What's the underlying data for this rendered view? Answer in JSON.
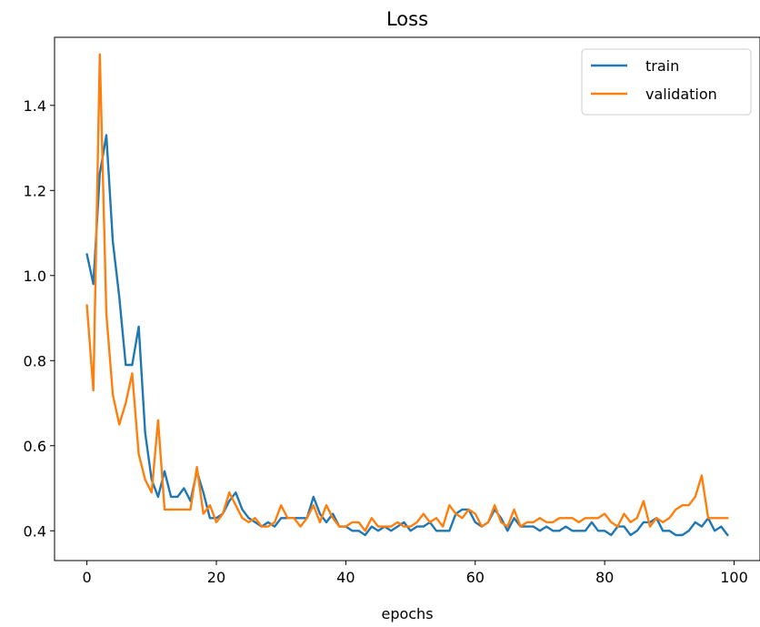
{
  "chart_data": {
    "type": "line",
    "title": "Loss",
    "xlabel": "epochs",
    "ylabel": "",
    "xlim": [
      -5,
      104
    ],
    "ylim": [
      0.33,
      1.56
    ],
    "xticks": [
      0,
      20,
      40,
      60,
      80,
      100
    ],
    "yticks": [
      0.4,
      0.6,
      0.8,
      1.0,
      1.2,
      1.4
    ],
    "ytick_labels": [
      "0.4",
      "0.6",
      "0.8",
      "1.0",
      "1.2",
      "1.4"
    ],
    "grid": false,
    "legend_position": "top-right",
    "x": [
      0,
      1,
      2,
      3,
      4,
      5,
      6,
      7,
      8,
      9,
      10,
      11,
      12,
      13,
      14,
      15,
      16,
      17,
      18,
      19,
      20,
      21,
      22,
      23,
      24,
      25,
      26,
      27,
      28,
      29,
      30,
      31,
      32,
      33,
      34,
      35,
      36,
      37,
      38,
      39,
      40,
      41,
      42,
      43,
      44,
      45,
      46,
      47,
      48,
      49,
      50,
      51,
      52,
      53,
      54,
      55,
      56,
      57,
      58,
      59,
      60,
      61,
      62,
      63,
      64,
      65,
      66,
      67,
      68,
      69,
      70,
      71,
      72,
      73,
      74,
      75,
      76,
      77,
      78,
      79,
      80,
      81,
      82,
      83,
      84,
      85,
      86,
      87,
      88,
      89,
      90,
      91,
      92,
      93,
      94,
      95,
      96,
      97,
      98,
      99
    ],
    "series": [
      {
        "name": "train",
        "color": "#1f77b4",
        "values": [
          1.05,
          0.98,
          1.24,
          1.33,
          1.08,
          0.95,
          0.79,
          0.79,
          0.88,
          0.63,
          0.52,
          0.48,
          0.54,
          0.48,
          0.48,
          0.5,
          0.47,
          0.54,
          0.49,
          0.43,
          0.43,
          0.44,
          0.47,
          0.49,
          0.45,
          0.43,
          0.42,
          0.41,
          0.42,
          0.41,
          0.43,
          0.43,
          0.43,
          0.43,
          0.43,
          0.48,
          0.44,
          0.42,
          0.44,
          0.41,
          0.41,
          0.4,
          0.4,
          0.39,
          0.41,
          0.4,
          0.41,
          0.4,
          0.41,
          0.42,
          0.4,
          0.41,
          0.41,
          0.42,
          0.4,
          0.4,
          0.4,
          0.44,
          0.45,
          0.45,
          0.42,
          0.41,
          0.42,
          0.45,
          0.43,
          0.4,
          0.43,
          0.41,
          0.41,
          0.41,
          0.4,
          0.41,
          0.4,
          0.4,
          0.41,
          0.4,
          0.4,
          0.4,
          0.42,
          0.4,
          0.4,
          0.39,
          0.41,
          0.41,
          0.39,
          0.4,
          0.42,
          0.42,
          0.43,
          0.4,
          0.4,
          0.39,
          0.39,
          0.4,
          0.42,
          0.41,
          0.43,
          0.4,
          0.41,
          0.39
        ]
      },
      {
        "name": "validation",
        "color": "#ff7f0e",
        "values": [
          0.93,
          0.73,
          1.52,
          0.91,
          0.72,
          0.65,
          0.7,
          0.77,
          0.58,
          0.52,
          0.49,
          0.66,
          0.45,
          0.45,
          0.45,
          0.45,
          0.45,
          0.55,
          0.44,
          0.46,
          0.42,
          0.44,
          0.49,
          0.46,
          0.43,
          0.42,
          0.43,
          0.41,
          0.41,
          0.42,
          0.46,
          0.43,
          0.43,
          0.41,
          0.43,
          0.46,
          0.42,
          0.46,
          0.43,
          0.41,
          0.41,
          0.42,
          0.42,
          0.4,
          0.43,
          0.41,
          0.41,
          0.41,
          0.42,
          0.41,
          0.41,
          0.42,
          0.44,
          0.42,
          0.43,
          0.41,
          0.46,
          0.44,
          0.43,
          0.45,
          0.44,
          0.41,
          0.42,
          0.46,
          0.42,
          0.41,
          0.45,
          0.41,
          0.42,
          0.42,
          0.43,
          0.42,
          0.42,
          0.43,
          0.43,
          0.43,
          0.42,
          0.43,
          0.43,
          0.43,
          0.44,
          0.42,
          0.41,
          0.44,
          0.42,
          0.43,
          0.47,
          0.41,
          0.43,
          0.42,
          0.43,
          0.45,
          0.46,
          0.46,
          0.48,
          0.53,
          0.43,
          0.43,
          0.43,
          0.43
        ]
      }
    ]
  }
}
